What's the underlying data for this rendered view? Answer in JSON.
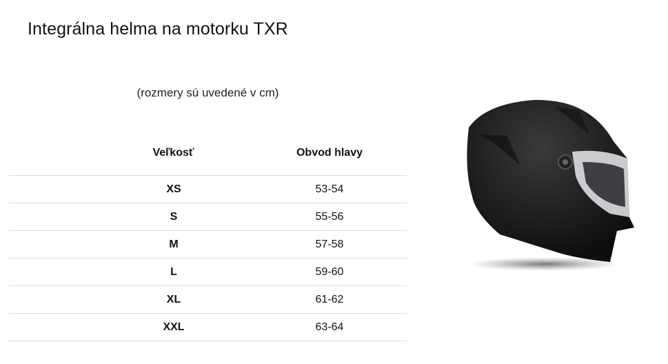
{
  "title": "Integrálna helma na motorku TXR",
  "subtitle": "(rozmery sú uvedené v cm)",
  "table": {
    "headers": [
      "Veľkosť",
      "Obvod hlavy"
    ],
    "rows": [
      {
        "size": "XS",
        "head": "53-54"
      },
      {
        "size": "S",
        "head": "55-56"
      },
      {
        "size": "M",
        "head": "57-58"
      },
      {
        "size": "L",
        "head": "59-60"
      },
      {
        "size": "XL",
        "head": "61-62"
      },
      {
        "size": "XXL",
        "head": "63-64"
      }
    ]
  },
  "image": {
    "subject": "black matte full-face helmet",
    "color": "#1c1c1c"
  }
}
